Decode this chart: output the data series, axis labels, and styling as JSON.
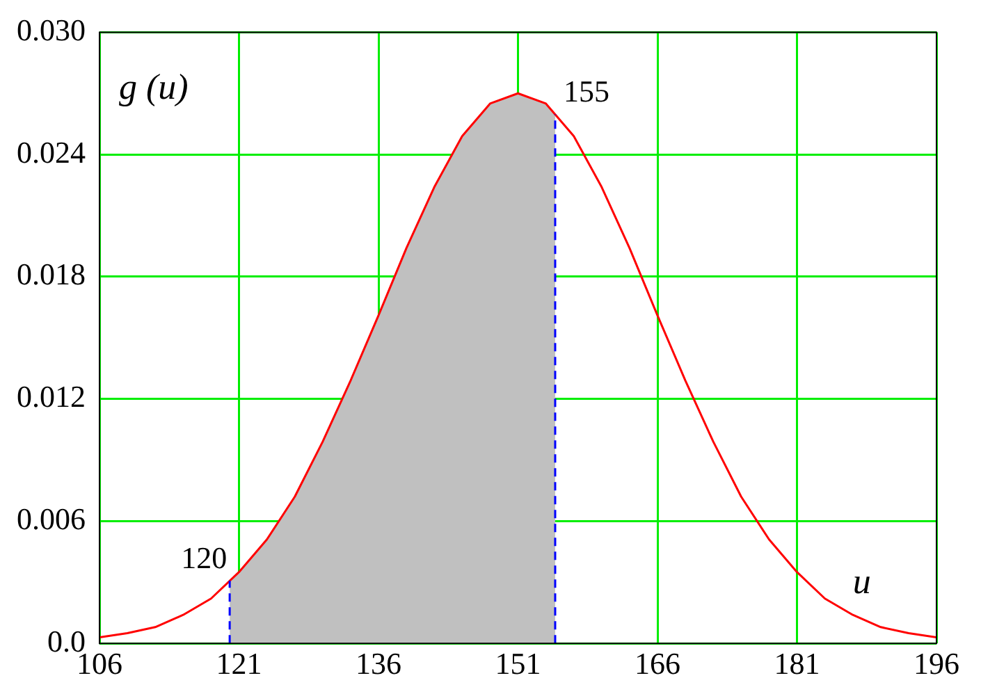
{
  "chart_data": {
    "type": "line",
    "xlabel": "u",
    "ylabel": "g (u)",
    "xlim": [
      106,
      196
    ],
    "xticks": [
      106,
      121,
      136,
      151,
      166,
      181,
      196
    ],
    "ylim": [
      0,
      0.03
    ],
    "yticks": [
      {
        "value": 0,
        "label": "0.0"
      },
      0.006,
      0.012,
      0.018,
      0.024,
      {
        "value": 0.03,
        "label": "0.030"
      }
    ],
    "grid": true,
    "legend": false,
    "series": [
      {
        "type": "area",
        "color": "#c0c0c0",
        "x": [
          120,
          121,
          124,
          127,
          130,
          133,
          136,
          139,
          142,
          145,
          148,
          151,
          154,
          155
        ],
        "values": [
          0.003,
          0.0035,
          0.0051,
          0.0072,
          0.0099,
          0.0129,
          0.0161,
          0.0194,
          0.0224,
          0.0249,
          0.0265,
          0.027,
          0.0265,
          0.026
        ]
      },
      {
        "type": "line",
        "color": "#ff0000",
        "x": [
          106,
          109,
          112,
          115,
          118,
          121,
          124,
          127,
          130,
          133,
          136,
          139,
          142,
          145,
          148,
          151,
          154,
          157,
          160,
          163,
          166,
          169,
          172,
          175,
          178,
          181,
          184,
          187,
          190,
          193,
          196
        ],
        "values": [
          0.0003,
          0.0005,
          0.0008,
          0.0014,
          0.0022,
          0.0035,
          0.0051,
          0.0072,
          0.0099,
          0.0129,
          0.0161,
          0.0194,
          0.0224,
          0.0249,
          0.0265,
          0.027,
          0.0265,
          0.0249,
          0.0224,
          0.0194,
          0.0161,
          0.0129,
          0.0099,
          0.0072,
          0.0051,
          0.0035,
          0.0022,
          0.0014,
          0.0008,
          0.0005,
          0.0003
        ]
      }
    ],
    "ref_lines": [
      {
        "axis": "x",
        "value": 120,
        "label": "120",
        "color": "#0000ff",
        "line_style": "dashed"
      },
      {
        "axis": "x",
        "value": 155,
        "label": "155",
        "color": "#0000ff",
        "line_style": "dashed"
      }
    ]
  }
}
